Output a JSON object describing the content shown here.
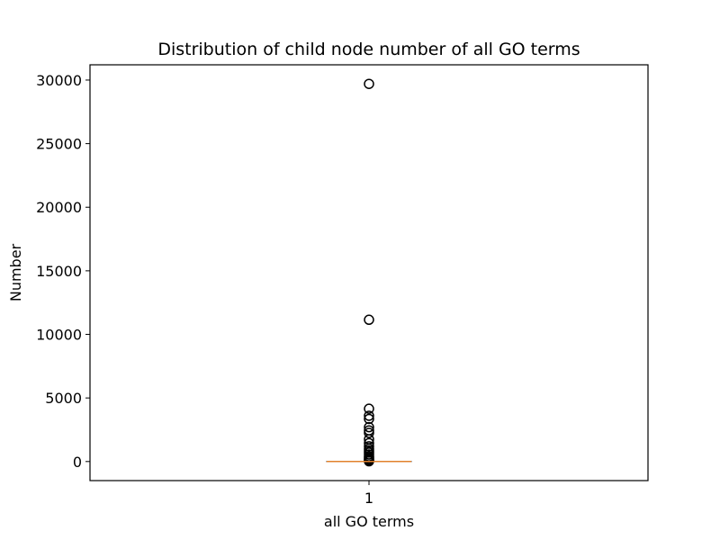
{
  "chart_data": {
    "type": "box",
    "title": "Distribution of child node number of all GO terms",
    "xlabel": "all GO terms",
    "ylabel": "Number",
    "categories": [
      "1"
    ],
    "ylim": [
      -1500,
      31200
    ],
    "yticks": [
      0,
      5000,
      10000,
      15000,
      20000,
      25000,
      30000
    ],
    "series": [
      {
        "category": "1",
        "median": 0,
        "q1": 0,
        "q3": 0,
        "whisker_low": 0,
        "whisker_high": 0,
        "outliers": [
          29700,
          11150,
          4150,
          3600,
          3350,
          2700,
          2450,
          2250,
          1750,
          1450,
          1200,
          1000,
          850,
          700,
          550,
          400,
          300,
          200,
          120,
          60,
          20
        ]
      }
    ],
    "grid": false,
    "colors": {
      "median": "#e1812c",
      "outlier": "#000000",
      "axes": "#000000"
    }
  }
}
